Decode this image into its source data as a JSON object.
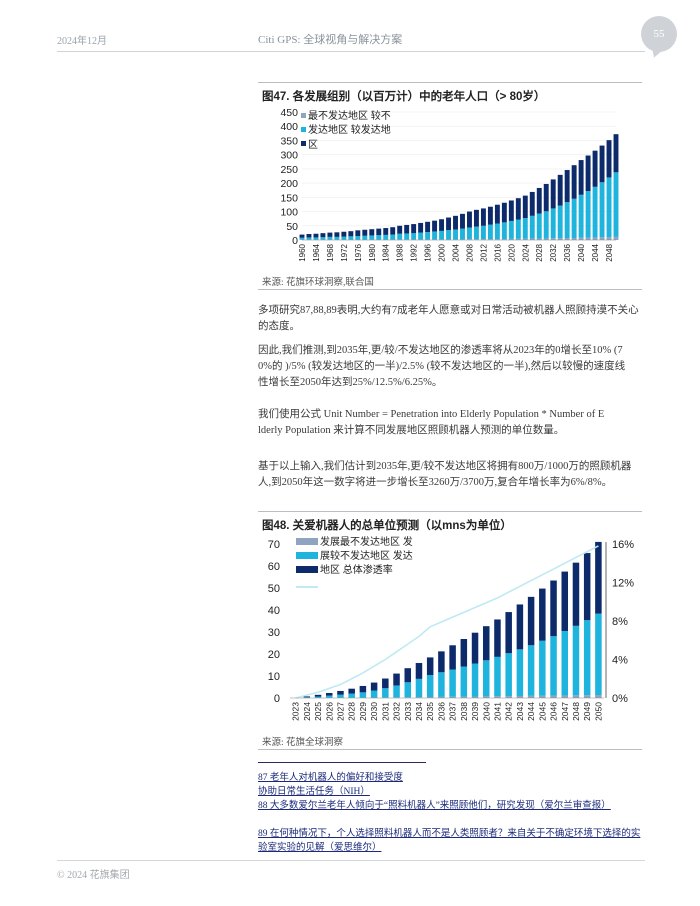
{
  "header": {
    "date": "2024年12月",
    "title": "Citi GPS: 全球视角与解决方案",
    "page_number": "55"
  },
  "figure47": {
    "title": "图47. 各发展组别（以百万计）中的老年人口（> 80岁）",
    "legend_lines": [
      "最不发达地区 较不",
      "发达地区 较发达地",
      "区"
    ],
    "source": "来源: 花旗环球洞察,联合国"
  },
  "paragraphs": {
    "p1": [
      "多项研究87,88,89表明,大约有7成老年人愿意或对日常活动被机器人照顾持漠不关心",
      "的态度。"
    ],
    "p2": [
      "因此,我们推测,到2035年,更/较/不发达地区的渗透率将从2023年的0增长至10% (7",
      "0%的 )/5% (较发达地区的一半)/2.5% (较不发达地区的一半),然后以较慢的速度线",
      "性增长至2050年达到25%/12.5%/6.25%。"
    ],
    "p3": [
      "我们使用公式 Unit Number = Penetration into Elderly Population * Number of E",
      "lderly Population 来计算不同发展地区照顾机器人预测的单位数量。"
    ],
    "p4": [
      "基于以上输入,我们估计到2035年,更/较不发达地区将拥有800万/1000万的照顾机器",
      "人,到2050年这一数字将进一步增长至3260万/3700万,复合年增长率为6%/8%。"
    ]
  },
  "figure48": {
    "title": "图48. 关爱机器人的总单位预测（以mns为单位）",
    "legend_lines": [
      "发展最不发达地区 发",
      "展较不发达地区 发达",
      "地区 总体渗透率"
    ],
    "source": "来源: 花旗全球洞察"
  },
  "footnotes": {
    "fn87a": "87 老年人对机器人的偏好和接受度",
    "fn87b": "协助日常生活任务（NIH）",
    "fn88": "88 大多数爱尔兰老年人倾向于“照料机器人”来照顾他们，研究发现（爱尔兰审查报）",
    "fn89a": "89 在何种情况下，个人选择照料机器人而不是人类照顾者？来自关于不确定环境下选择的实",
    "fn89b": "验室实验的见解（爱思维尔）"
  },
  "footer": {
    "copyright": "© 2024 花旗集团"
  },
  "colors": {
    "least": "#8fa4bf",
    "less": "#1fb4dd",
    "more": "#0d2a6b",
    "penetration": "#bfeaf2"
  },
  "chart_data": [
    {
      "type": "bar",
      "stacked": true,
      "title": "图47. 各发展组别（以百万计）中的老年人口（> 80岁）",
      "ylim": [
        0,
        450
      ],
      "yticks": [
        0,
        50,
        100,
        150,
        200,
        250,
        300,
        350,
        400,
        450
      ],
      "x_start": 1960,
      "x_end": 2050,
      "x_tick_labels": [
        "1960",
        "1964",
        "1968",
        "1972",
        "1976",
        "1980",
        "1984",
        "1988",
        "1992",
        "1996",
        "2000",
        "2004",
        "2008",
        "2012",
        "2016",
        "2020",
        "2024",
        "2028",
        "2032",
        "2036",
        "2040",
        "2044",
        "2048"
      ],
      "x": [
        1960,
        1962,
        1964,
        1966,
        1968,
        1970,
        1972,
        1974,
        1976,
        1978,
        1980,
        1982,
        1984,
        1986,
        1988,
        1990,
        1992,
        1994,
        1996,
        1998,
        2000,
        2002,
        2004,
        2006,
        2008,
        2010,
        2012,
        2014,
        2016,
        2018,
        2020,
        2022,
        2024,
        2026,
        2028,
        2030,
        2032,
        2034,
        2036,
        2038,
        2040,
        2042,
        2044,
        2046,
        2048,
        2050
      ],
      "series": [
        {
          "name": "最不发达地区",
          "values": [
            1,
            1,
            1,
            1,
            1,
            1,
            1,
            1,
            1,
            1,
            1,
            1,
            1,
            1,
            2,
            2,
            2,
            2,
            2,
            2,
            2,
            2,
            2,
            2,
            3,
            3,
            3,
            3,
            3,
            3,
            4,
            4,
            4,
            5,
            5,
            5,
            6,
            6,
            7,
            7,
            8,
            8,
            9,
            10,
            10,
            11
          ]
        },
        {
          "name": "较不发达地区",
          "values": [
            7,
            8,
            8,
            9,
            10,
            10,
            11,
            12,
            13,
            14,
            15,
            16,
            17,
            18,
            20,
            21,
            22,
            24,
            26,
            28,
            30,
            33,
            35,
            38,
            41,
            44,
            47,
            51,
            55,
            59,
            63,
            68,
            73,
            80,
            88,
            96,
            105,
            115,
            126,
            138,
            151,
            164,
            178,
            193,
            210,
            227
          ]
        },
        {
          "name": "较发达地区",
          "values": [
            11,
            12,
            13,
            14,
            15,
            16,
            17,
            18,
            20,
            21,
            22,
            23,
            24,
            26,
            28,
            30,
            32,
            34,
            36,
            38,
            41,
            44,
            48,
            52,
            56,
            59,
            61,
            63,
            66,
            69,
            72,
            75,
            79,
            84,
            90,
            96,
            102,
            108,
            113,
            118,
            122,
            125,
            127,
            129,
            131,
            134
          ]
        }
      ]
    },
    {
      "type": "bar",
      "stacked": true,
      "title": "图48. 关爱机器人的总单位预测（以mns为单位）",
      "ylim": [
        0,
        70
      ],
      "yticks": [
        0,
        10,
        20,
        30,
        40,
        50,
        60,
        70
      ],
      "y2ticks": [
        "0%",
        "4%",
        "8%",
        "12%",
        "16%"
      ],
      "y2lim": [
        0,
        16
      ],
      "categories": [
        "2023",
        "2024",
        "2025",
        "2026",
        "2027",
        "2028",
        "2029",
        "2030",
        "2031",
        "2032",
        "2033",
        "2034",
        "2035",
        "2036",
        "2037",
        "2038",
        "2039",
        "2040",
        "2041",
        "2042",
        "2043",
        "2044",
        "2045",
        "2046",
        "2047",
        "2048",
        "2049",
        "2050"
      ],
      "series": [
        {
          "name": "最不发达地区",
          "values": [
            0,
            0.02,
            0.04,
            0.07,
            0.1,
            0.13,
            0.17,
            0.21,
            0.25,
            0.3,
            0.35,
            0.4,
            0.45,
            0.5,
            0.56,
            0.62,
            0.68,
            0.74,
            0.8,
            0.86,
            0.92,
            0.98,
            1.04,
            1.1,
            1.16,
            1.22,
            1.28,
            1.35
          ]
        },
        {
          "name": "较不发达地区",
          "values": [
            0,
            0.3,
            0.6,
            1.0,
            1.4,
            1.9,
            2.4,
            3.2,
            4.2,
            5.4,
            6.8,
            8.3,
            10.0,
            11.2,
            12.4,
            13.7,
            15.0,
            16.4,
            17.9,
            19.5,
            21.2,
            23.0,
            25.0,
            27.0,
            29.3,
            31.6,
            34.1,
            37.0
          ]
        },
        {
          "name": "较发达地区",
          "values": [
            0,
            0.4,
            0.8,
            1.2,
            1.7,
            2.2,
            2.9,
            3.6,
            4.4,
            5.4,
            6.4,
            7.2,
            8.0,
            9.5,
            11.0,
            12.5,
            14.0,
            15.5,
            17.0,
            18.7,
            20.4,
            22.0,
            23.7,
            25.3,
            27.0,
            28.7,
            30.5,
            32.6
          ]
        },
        {
          "name": "总体渗透率",
          "type": "line",
          "axis": "right",
          "values": [
            0,
            0.3,
            0.6,
            1.0,
            1.4,
            2.0,
            2.6,
            3.3,
            4.0,
            4.8,
            5.6,
            6.4,
            7.4,
            7.9,
            8.4,
            8.9,
            9.4,
            9.9,
            10.4,
            11.0,
            11.6,
            12.2,
            12.8,
            13.4,
            14.0,
            14.6,
            15.2,
            15.8
          ]
        }
      ]
    }
  ]
}
